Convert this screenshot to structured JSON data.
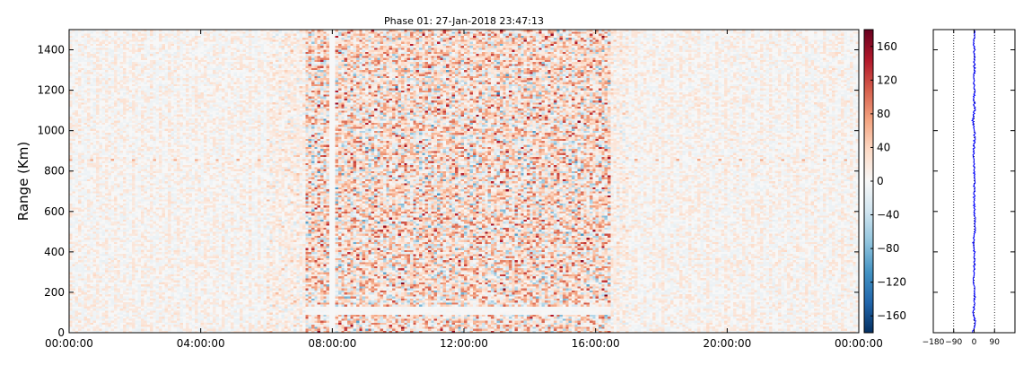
{
  "chart_data": [
    {
      "type": "heatmap",
      "title": "Phase 01: 27-Jan-2018 23:47:13",
      "xlabel": "",
      "ylabel": "Range (Km)",
      "xlim": [
        "00:00:00",
        "00:00:00"
      ],
      "ylim": [
        0,
        1500
      ],
      "x_ticks": [
        "00:00:00",
        "04:00:00",
        "08:00:00",
        "12:00:00",
        "16:00:00",
        "20:00:00",
        "00:00:00"
      ],
      "y_ticks": [
        0,
        200,
        400,
        600,
        800,
        1000,
        1200,
        1400
      ],
      "grid": false,
      "colormap": "RdBu_r",
      "colorbar": {
        "range": [
          -180,
          180
        ],
        "ticks": [
          -160,
          -120,
          -80,
          -40,
          0,
          40,
          80,
          120,
          160
        ],
        "colors": [
          "#053061",
          "#2166ac",
          "#4393c3",
          "#92c5de",
          "#d1e5f0",
          "#f7f7f7",
          "#fddbc7",
          "#f4a582",
          "#d6604d",
          "#b2182b",
          "#67001f"
        ]
      },
      "approximate_structure": {
        "low_activity_periods_hours": [
          [
            0,
            5.5
          ],
          [
            17,
            24
          ]
        ],
        "high_activity_period_hours": [
          6,
          17
        ],
        "most_intense_period_hours": [
          7.2,
          16.5
        ],
        "quiet_band_range_km": [
          [
            90,
            130
          ]
        ],
        "horizontal_stripe_range_km": 855,
        "blank_column_hour": 8.0
      }
    },
    {
      "type": "line",
      "title": "",
      "xlabel": "",
      "ylabel": "",
      "xlim": [
        -180,
        180
      ],
      "ylim": [
        0,
        1500
      ],
      "x_ticks": [
        -180,
        -90,
        0,
        90
      ],
      "y_ticks": [
        0,
        200,
        400,
        600,
        800,
        1000,
        1200,
        1400
      ],
      "vertical_dotted_lines": [
        -90,
        0,
        90
      ],
      "series_color": "#0000ff",
      "approximate_profile": {
        "range_km": [
          0,
          50,
          100,
          150,
          200,
          250,
          300,
          350,
          400,
          450,
          500,
          550,
          600,
          650,
          700,
          750,
          800,
          850,
          900,
          950,
          1000,
          1050,
          1100,
          1150,
          1200,
          1250,
          1300,
          1350,
          1400,
          1450,
          1500
        ],
        "phase_deg": [
          -5,
          4,
          -3,
          2,
          3,
          -2,
          -1,
          2,
          1,
          -4,
          5,
          3,
          2,
          -1,
          2,
          0,
          1,
          -2,
          -1,
          1,
          3,
          -6,
          2,
          0,
          1,
          -2,
          2,
          0,
          1,
          -1,
          2
        ]
      }
    }
  ]
}
